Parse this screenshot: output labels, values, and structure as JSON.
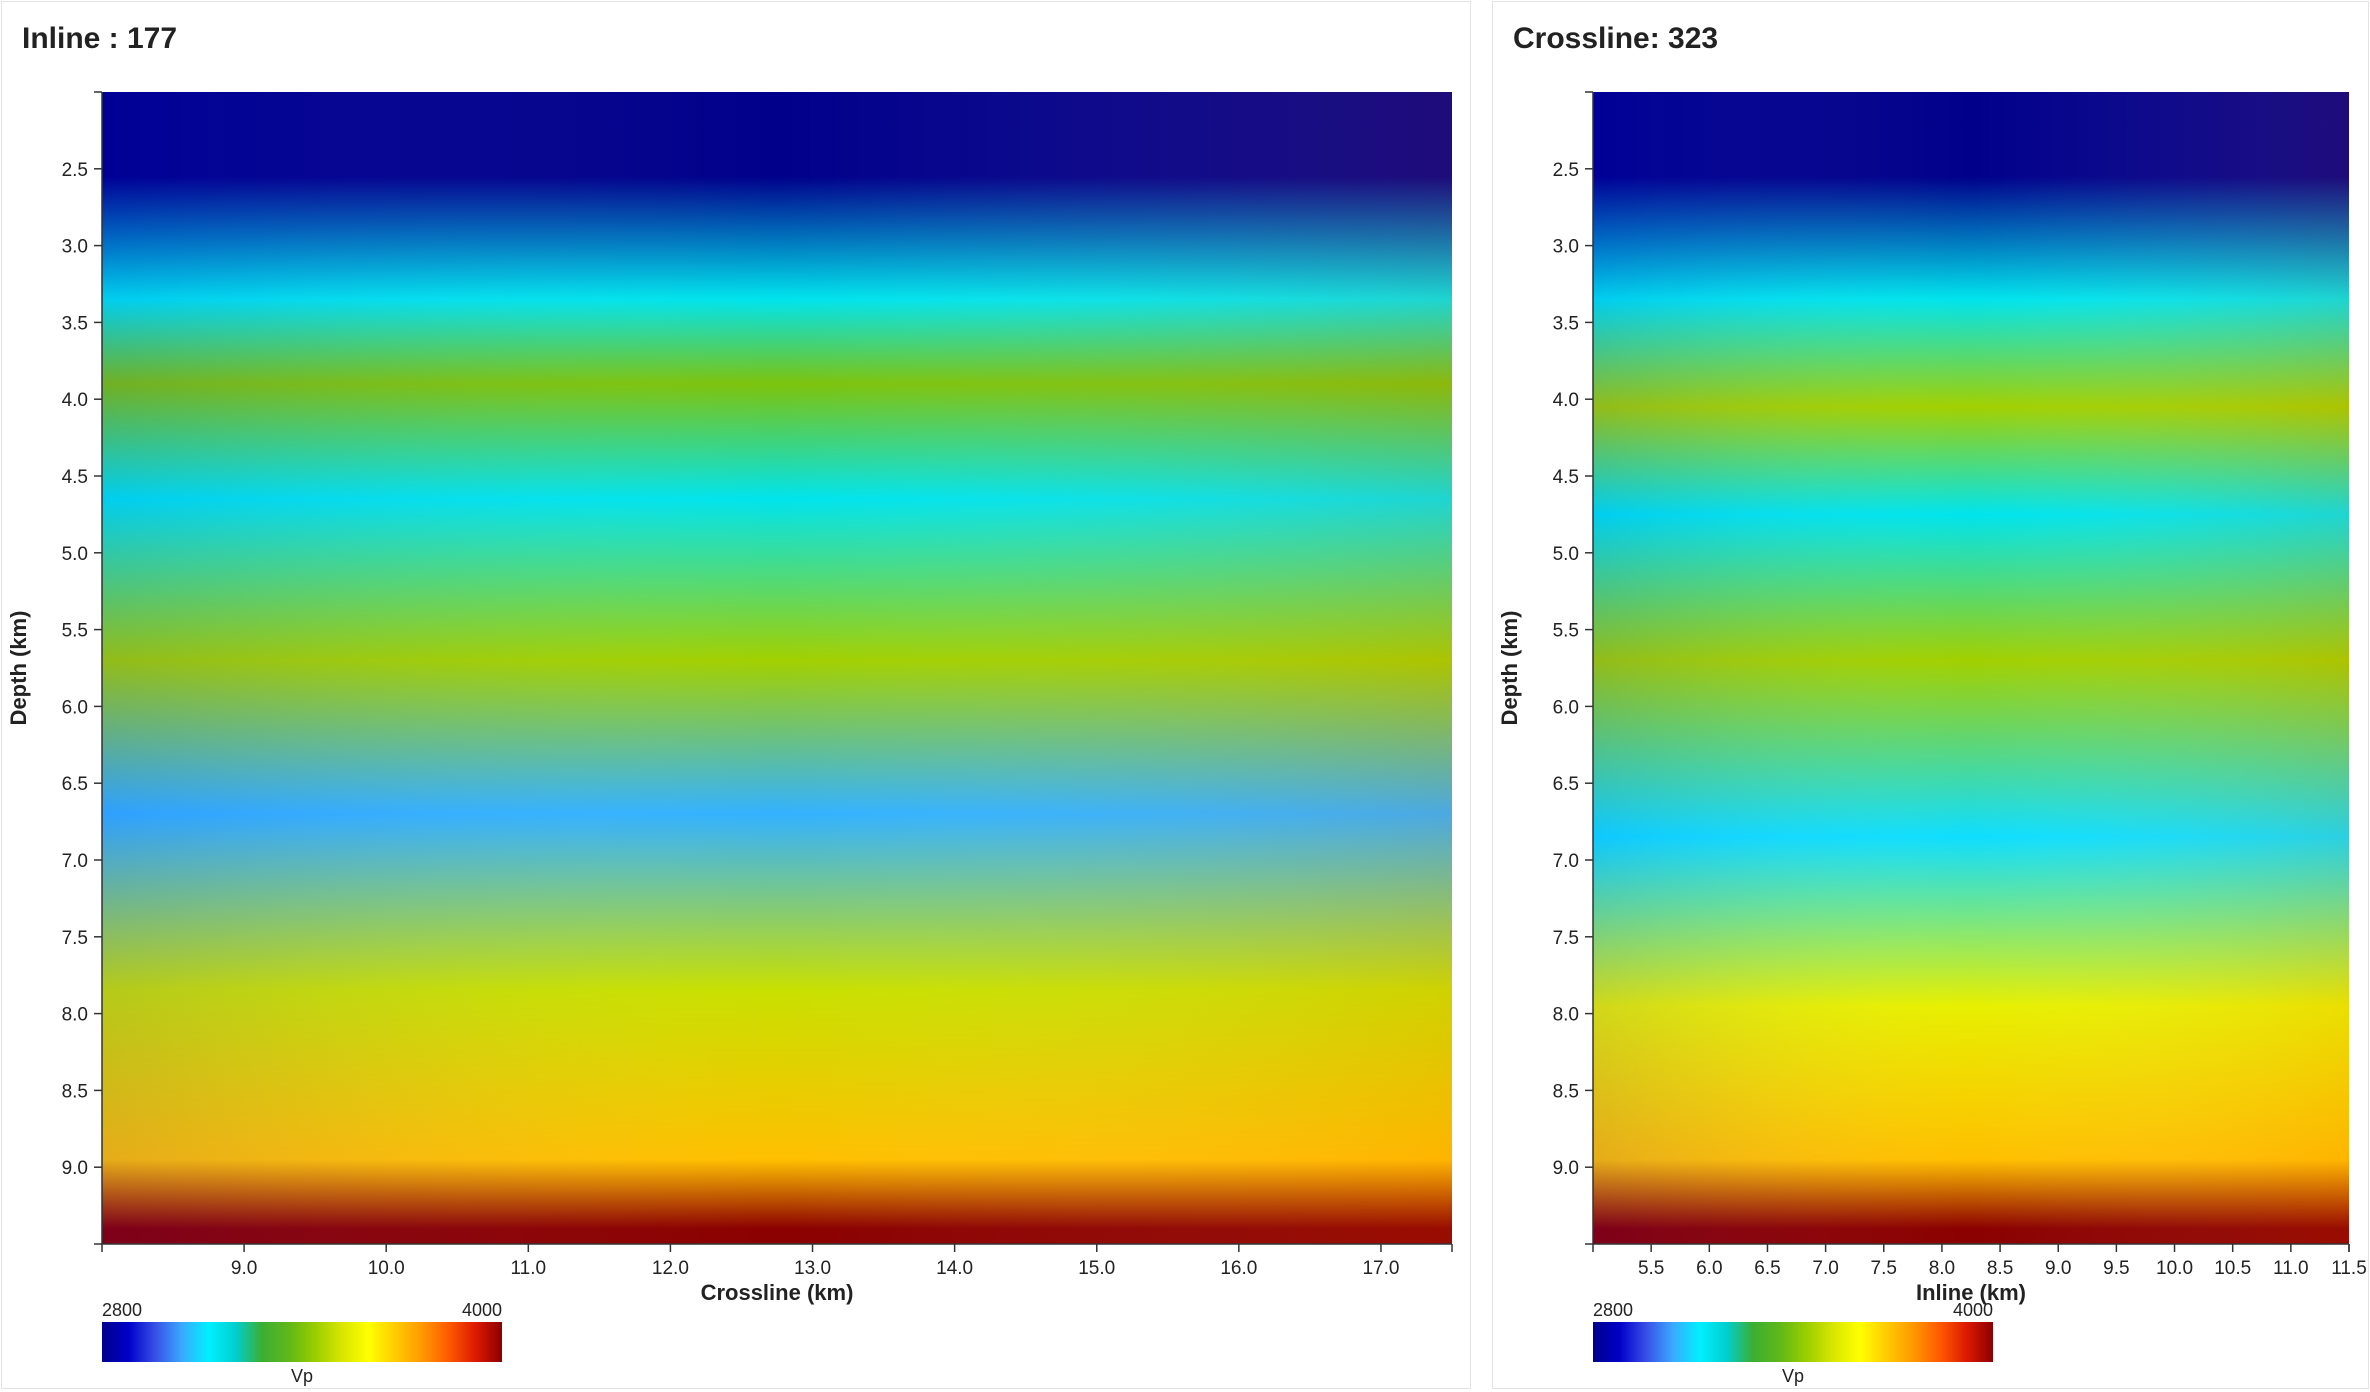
{
  "panels": {
    "inline": {
      "title": "Inline : 177"
    },
    "crossline": {
      "title": "Crossline: 323"
    }
  },
  "colormap": {
    "stops": [
      "#00008b",
      "#0000c8",
      "#3850e6",
      "#3aa9ff",
      "#00f0ff",
      "#00cfd0",
      "#3cae32",
      "#5fb818",
      "#9acd00",
      "#d8e600",
      "#ffff00",
      "#ffcc00",
      "#ff9900",
      "#ff5a00",
      "#dd1a00",
      "#8b0000"
    ],
    "min_label": "2800",
    "max_label": "4000",
    "label": "Vp"
  },
  "chart_data": [
    {
      "type": "heatmap",
      "title": "Inline : 177",
      "xlabel": "Crossline (km)",
      "ylabel": "Depth (km)",
      "xlim": [
        8.0,
        17.5
      ],
      "ylim": [
        2.0,
        9.5
      ],
      "y_inverted": true,
      "x_ticks": [
        "9.0",
        "10.0",
        "11.0",
        "12.0",
        "13.0",
        "14.0",
        "15.0",
        "16.0",
        "17.0"
      ],
      "y_ticks": [
        "2.5",
        "3.0",
        "3.5",
        "4.0",
        "4.5",
        "5.0",
        "5.5",
        "6.0",
        "6.5",
        "7.0",
        "7.5",
        "8.0",
        "8.5",
        "9.0"
      ],
      "colorbar": {
        "label": "Vp",
        "min": 2800,
        "max": 4000
      },
      "layers": [
        {
          "depth_top": 2.0,
          "value": 2800
        },
        {
          "depth_top": 3.1,
          "value": 3150
        },
        {
          "depth_top": 3.6,
          "value": 3400
        },
        {
          "depth_top": 4.2,
          "value": 3150
        },
        {
          "depth_top": 5.1,
          "value": 3450
        },
        {
          "depth_top": 6.3,
          "value": 3050
        },
        {
          "depth_top": 7.1,
          "value": 3500
        },
        {
          "depth_top": 8.6,
          "value": 3700
        },
        {
          "depth_top": 9.3,
          "value": 4000
        }
      ]
    },
    {
      "type": "heatmap",
      "title": "Crossline: 323",
      "xlabel": "Inline (km)",
      "ylabel": "Depth (km)",
      "xlim": [
        5.0,
        11.5
      ],
      "ylim": [
        2.0,
        9.5
      ],
      "y_inverted": true,
      "x_ticks": [
        "5.5",
        "6.0",
        "6.5",
        "7.0",
        "7.5",
        "8.0",
        "8.5",
        "9.0",
        "9.5",
        "10.0",
        "10.5",
        "11.0",
        "11.5"
      ],
      "y_ticks": [
        "2.5",
        "3.0",
        "3.5",
        "4.0",
        "4.5",
        "5.0",
        "5.5",
        "6.0",
        "6.5",
        "7.0",
        "7.5",
        "8.0",
        "8.5",
        "9.0"
      ],
      "colorbar": {
        "label": "Vp",
        "min": 2800,
        "max": 4000
      },
      "layers": [
        {
          "depth_top": 2.0,
          "value": 2800
        },
        {
          "depth_top": 3.1,
          "value": 3150
        },
        {
          "depth_top": 3.6,
          "value": 3450
        },
        {
          "depth_top": 4.5,
          "value": 3150
        },
        {
          "depth_top": 5.0,
          "value": 3450
        },
        {
          "depth_top": 6.4,
          "value": 3100
        },
        {
          "depth_top": 7.3,
          "value": 3550
        },
        {
          "depth_top": 8.6,
          "value": 3700
        },
        {
          "depth_top": 9.3,
          "value": 4000
        }
      ]
    }
  ]
}
